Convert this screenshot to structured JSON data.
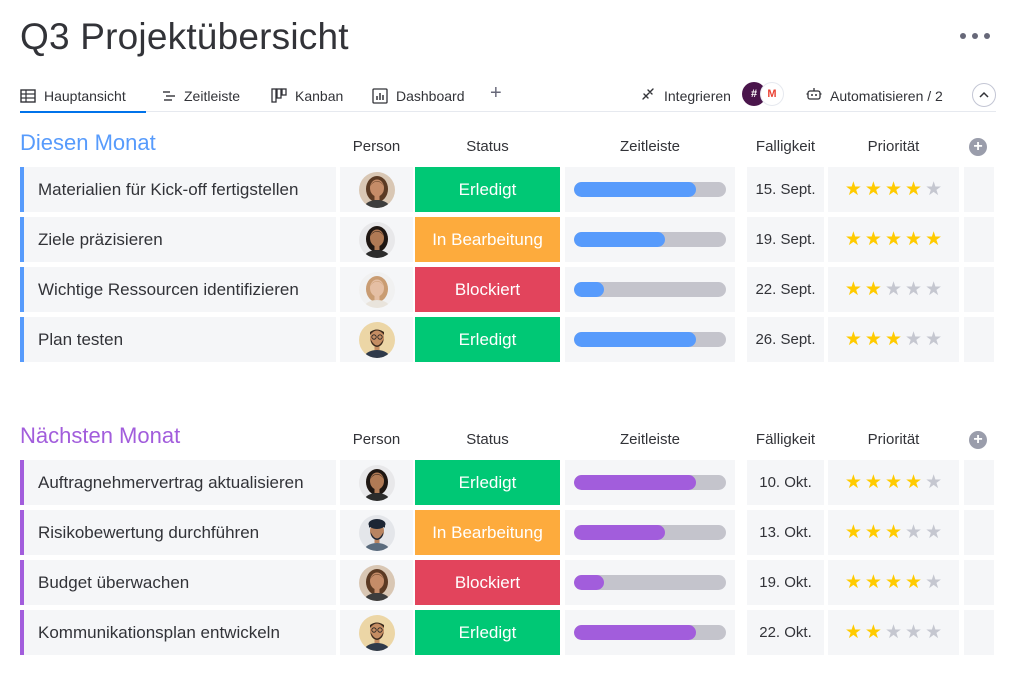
{
  "board": {
    "title": "Q3 Projektübersicht"
  },
  "colors": {
    "accent": "#0073ea",
    "group_blue": "#579bfc",
    "group_purple": "#a25ddc",
    "done": "#00c875",
    "working": "#fdab3d",
    "stuck": "#e2445c",
    "star_on": "#ffcb00",
    "star_off": "#c5c7d0",
    "track": "#c4c4cc"
  },
  "tabs": [
    {
      "label": "Hauptansicht",
      "icon": "table-icon",
      "active": true
    },
    {
      "label": "Zeitleiste",
      "icon": "timeline-icon",
      "active": false
    },
    {
      "label": "Kanban",
      "icon": "kanban-icon",
      "active": false
    },
    {
      "label": "Dashboard",
      "icon": "dashboard-icon",
      "active": false
    }
  ],
  "toolbar": {
    "add_view": "+",
    "integrate_label": "Integrieren",
    "integrate_icon": "plug-icon",
    "apps": [
      {
        "name": "slack-icon",
        "glyph": "#"
      },
      {
        "name": "gmail-icon",
        "glyph": "M"
      }
    ],
    "automate_label": "Automatisieren / 2",
    "automate_icon": "robot-icon"
  },
  "groups": [
    {
      "title": "Diesen Monat",
      "color": "#579bfc",
      "columns": {
        "person": "Person",
        "status": "Status",
        "timeline": "Zeitleiste",
        "due": "Falligkeit",
        "priority": "Priorität"
      },
      "rows": [
        {
          "name": "Materialien für Kick-off fertigstellen",
          "avatar": "woman-curly",
          "status": "Erledigt",
          "status_type": "done",
          "progress": 0.8,
          "due": "15. Sept.",
          "stars": 4
        },
        {
          "name": "Ziele präzisieren",
          "avatar": "woman-dark",
          "status": "In Bearbeitung",
          "status_type": "working",
          "progress": 0.6,
          "due": "19. Sept.",
          "stars": 5
        },
        {
          "name": "Wichtige Ressourcen identifizieren",
          "avatar": "woman-blonde",
          "status": "Blockiert",
          "status_type": "stuck",
          "progress": 0.2,
          "due": "22. Sept.",
          "stars": 2
        },
        {
          "name": "Plan testen",
          "avatar": "man-beard",
          "status": "Erledigt",
          "status_type": "done",
          "progress": 0.8,
          "due": "26. Sept.",
          "stars": 3
        }
      ]
    },
    {
      "title": "Nächsten Monat",
      "color": "#a25ddc",
      "columns": {
        "person": "Person",
        "status": "Status",
        "timeline": "Zeitleiste",
        "due": "Fälligkeit",
        "priority": "Priorität"
      },
      "rows": [
        {
          "name": "Auftragnehmervertrag aktualisieren",
          "avatar": "woman-dark",
          "status": "Erledigt",
          "status_type": "done",
          "progress": 0.8,
          "due": "10. Okt.",
          "stars": 4
        },
        {
          "name": "Risikobewertung durchführen",
          "avatar": "man-turban",
          "status": "In Bearbeitung",
          "status_type": "working",
          "progress": 0.6,
          "due": "13. Okt.",
          "stars": 3
        },
        {
          "name": "Budget überwachen",
          "avatar": "woman-curly",
          "status": "Blockiert",
          "status_type": "stuck",
          "progress": 0.2,
          "due": "19. Okt.",
          "stars": 4
        },
        {
          "name": "Kommunikationsplan entwickeln",
          "avatar": "man-beard",
          "status": "Erledigt",
          "status_type": "done",
          "progress": 0.8,
          "due": "22. Okt.",
          "stars": 2
        }
      ]
    }
  ]
}
